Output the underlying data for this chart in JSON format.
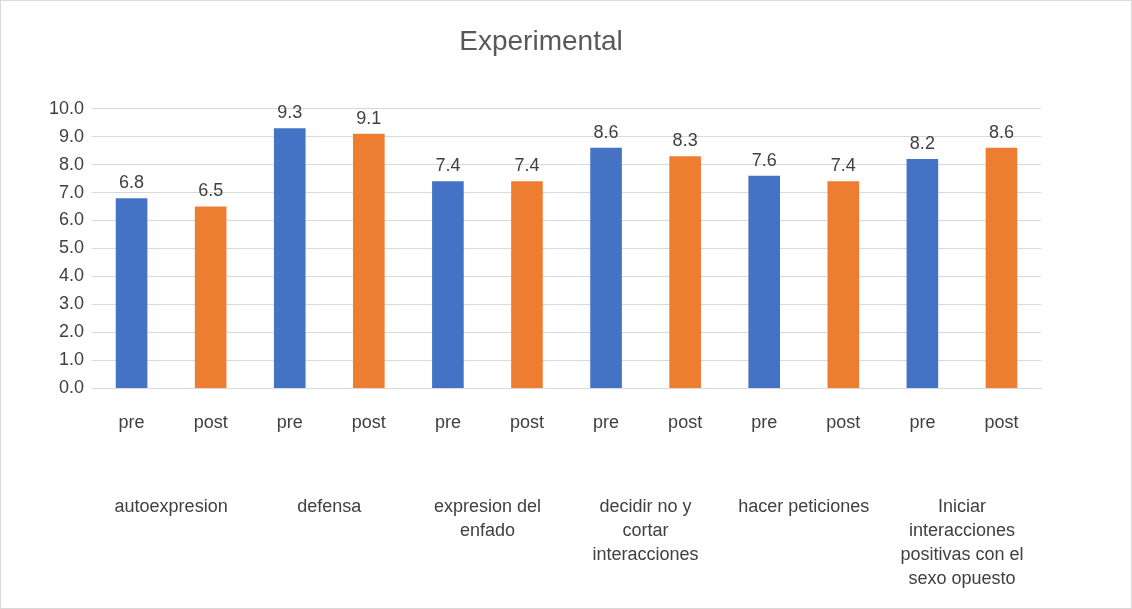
{
  "chart_data": {
    "type": "bar",
    "title": "Experimental",
    "categories": [
      "pre",
      "post",
      "pre",
      "post",
      "pre",
      "post",
      "pre",
      "post",
      "pre",
      "post",
      "pre",
      "post"
    ],
    "values": [
      6.8,
      6.5,
      9.3,
      9.1,
      7.4,
      7.4,
      8.6,
      8.3,
      7.6,
      7.4,
      8.2,
      8.6
    ],
    "colors": [
      "#4472c4",
      "#ed7d31",
      "#4472c4",
      "#ed7d31",
      "#4472c4",
      "#ed7d31",
      "#4472c4",
      "#ed7d31",
      "#4472c4",
      "#ed7d31",
      "#4472c4",
      "#ed7d31"
    ],
    "ylim": [
      0,
      10
    ],
    "yticks": [
      {
        "value": 0,
        "label": "0.0"
      },
      {
        "value": 1,
        "label": "1.0"
      },
      {
        "value": 2,
        "label": "2.0"
      },
      {
        "value": 3,
        "label": "3.0"
      },
      {
        "value": 4,
        "label": "4.0"
      },
      {
        "value": 5,
        "label": "5.0"
      },
      {
        "value": 6,
        "label": "6.0"
      },
      {
        "value": 7,
        "label": "7.0"
      },
      {
        "value": 8,
        "label": "8.0"
      },
      {
        "value": 9,
        "label": "9.0"
      },
      {
        "value": 10,
        "label": "10.0"
      }
    ],
    "grid": "y",
    "legend": false,
    "data_labels": true,
    "annotations": [
      "autoexpresion",
      "defensa",
      "expresion del enfado",
      "decidir no y cortar interacciones",
      "hacer peticiones",
      "Iniciar interacciones positivas con el sexo opuesto"
    ]
  }
}
